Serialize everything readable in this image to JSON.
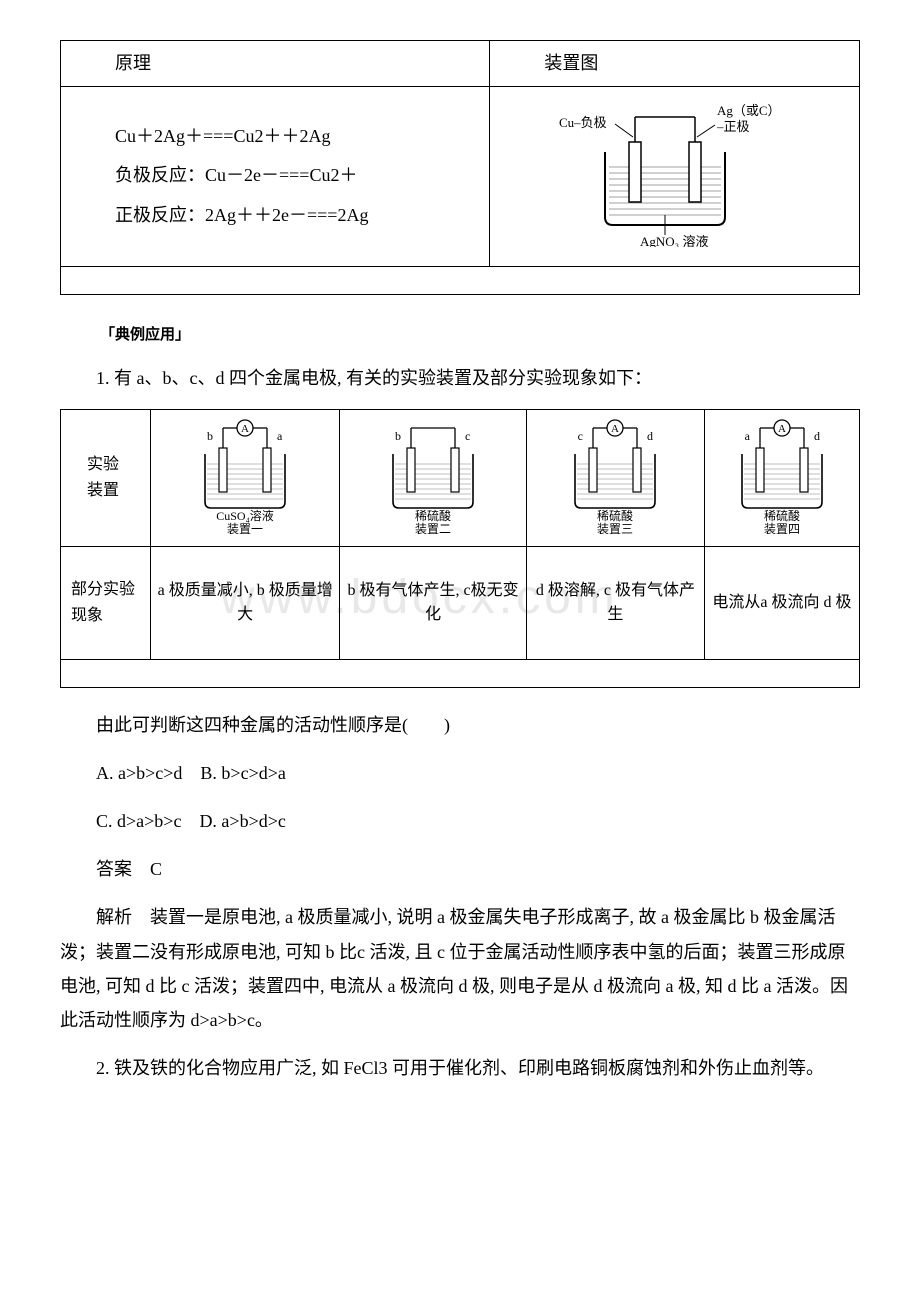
{
  "table1": {
    "headers": {
      "principle": "原理",
      "diagram": "装置图"
    },
    "equations": {
      "total": "Cu＋2Ag＋===Cu2＋＋2Ag",
      "negative": "负极反应：Cu－2e－===Cu2＋",
      "positive": "正极反应：2Ag＋＋2e－===2Ag"
    },
    "diagram": {
      "neg_label": "Cu–负极",
      "pos_label_top": "Ag（或C）",
      "pos_label_mid": "–正极",
      "solution": "AgNO₃ 溶液",
      "colors": {
        "line": "#000000",
        "liquid_fill": "#ffffff",
        "hatch": "#808080"
      }
    }
  },
  "section_label": "「典例应用」",
  "q1_intro": "1. 有 a、b、c、d 四个金属电极, 有关的实验装置及部分实验现象如下：",
  "table2": {
    "row1_label": "实验\n装置",
    "row2_label": "部分实验现象",
    "devices": [
      {
        "left_e": "b",
        "right_e": "a",
        "has_ammeter": true,
        "solution": "CuSO₄溶液",
        "name": "装置一"
      },
      {
        "left_e": "b",
        "right_e": "c",
        "has_ammeter": false,
        "solution": "稀硫酸",
        "name": "装置二"
      },
      {
        "left_e": "c",
        "right_e": "d",
        "has_ammeter": true,
        "solution": "稀硫酸",
        "name": "装置三"
      },
      {
        "left_e": "a",
        "right_e": "d",
        "has_ammeter": true,
        "solution": "稀硫酸",
        "name": "装置四"
      }
    ],
    "phenomena": [
      "a 极质量减小, b 极质量增大",
      "b 极有气体产生, c极无变化",
      "d 极溶解, c 极有气体产生",
      "电流从a 极流向 d 极"
    ],
    "colors": {
      "line": "#000000",
      "hatch": "#808080"
    }
  },
  "q1_followup": "由此可判断这四种金属的活动性顺序是(　　)",
  "options_line1": "A. a>b>c>d　B. b>c>d>a",
  "options_line2": "C. d>a>b>c　D. a>b>d>c",
  "answer": "答案　C",
  "explanation": "解析　装置一是原电池, a 极质量减小, 说明 a 极金属失电子形成离子, 故 a 极金属比 b 极金属活泼；装置二没有形成原电池, 可知 b 比c 活泼, 且 c 位于金属活动性顺序表中氢的后面；装置三形成原电池, 可知 d 比 c 活泼；装置四中, 电流从 a 极流向 d 极, 则电子是从 d 极流向 a 极, 知 d 比 a 活泼。因此活动性顺序为 d>a>b>c。",
  "q2_intro": "2. 铁及铁的化合物应用广泛, 如 FeCl3 可用于催化剂、印刷电路铜板腐蚀剂和外伤止血剂等。",
  "watermark": "www.bdocx.com"
}
